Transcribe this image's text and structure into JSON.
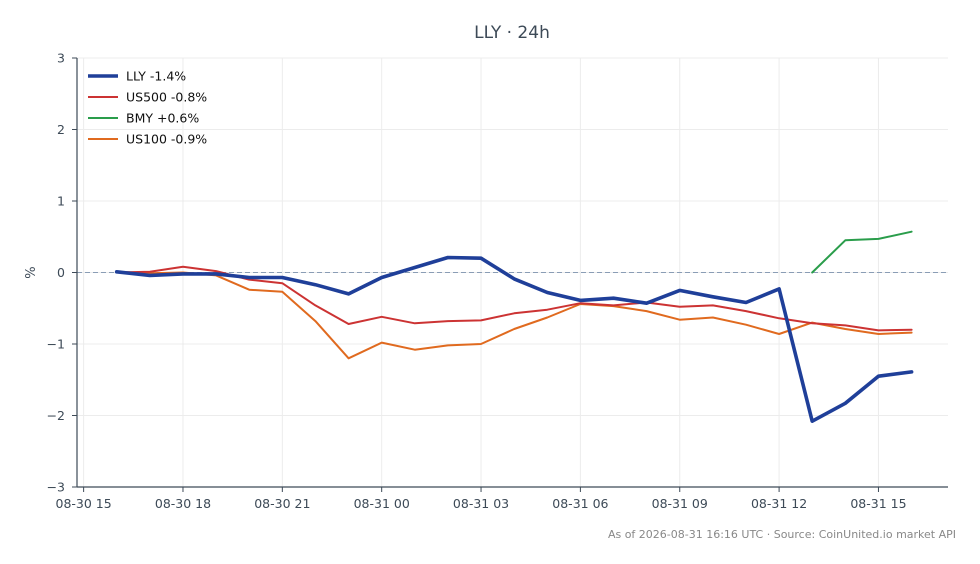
{
  "chart_data": {
    "type": "line",
    "title": "LLY · 24h",
    "xlabel": "",
    "ylabel": "%",
    "ylim": [
      -3,
      3
    ],
    "yticks": [
      -3,
      -2,
      -1,
      0,
      1,
      2,
      3
    ],
    "ytick_labels": [
      "−3",
      "−2",
      "−1",
      "0",
      "1",
      "2",
      "3"
    ],
    "xlim": [
      -0.2,
      26.1
    ],
    "xticks": [
      0,
      3,
      6,
      9,
      12,
      15,
      18,
      21,
      24
    ],
    "xtick_labels": [
      "08-30 15",
      "08-30 18",
      "08-30 21",
      "08-31 00",
      "08-31 03",
      "08-31 06",
      "08-31 09",
      "08-31 12",
      "08-31 15"
    ],
    "grid": true,
    "zero_line": true,
    "legend_position": "top-left",
    "series": [
      {
        "name": "LLY -1.4%",
        "color": "#1f3f99",
        "x": [
          1,
          2,
          3,
          4,
          5,
          6,
          7,
          8,
          9,
          10,
          11,
          12,
          13,
          14,
          15,
          16,
          17,
          18,
          19,
          20,
          21,
          22,
          23,
          24,
          25
        ],
        "values": [
          0.01,
          -0.04,
          -0.02,
          -0.02,
          -0.07,
          -0.07,
          -0.17,
          -0.3,
          -0.07,
          0.07,
          0.21,
          0.2,
          -0.09,
          -0.28,
          -0.39,
          -0.36,
          -0.43,
          -0.25,
          -0.34,
          -0.42,
          -0.23,
          -2.08,
          -1.83,
          -1.45,
          -1.39
        ]
      },
      {
        "name": "US500 -0.8%",
        "color": "#cc3333",
        "x": [
          1,
          2,
          3,
          4,
          5,
          6,
          7,
          8,
          9,
          10,
          11,
          12,
          13,
          14,
          15,
          16,
          17,
          18,
          19,
          20,
          21,
          22,
          23,
          24,
          25
        ],
        "values": [
          0.0,
          0.01,
          0.08,
          0.02,
          -0.1,
          -0.15,
          -0.46,
          -0.72,
          -0.62,
          -0.71,
          -0.68,
          -0.67,
          -0.57,
          -0.52,
          -0.43,
          -0.46,
          -0.42,
          -0.48,
          -0.46,
          -0.54,
          -0.64,
          -0.71,
          -0.74,
          -0.81,
          -0.8
        ]
      },
      {
        "name": "BMY +0.6%",
        "color": "#2a9d4b",
        "x": [
          22,
          23,
          24,
          25
        ],
        "values": [
          0.0,
          0.45,
          0.47,
          0.57
        ]
      },
      {
        "name": "US100 -0.9%",
        "color": "#e06a1f",
        "x": [
          1,
          2,
          3,
          4,
          5,
          6,
          7,
          8,
          9,
          10,
          11,
          12,
          13,
          14,
          15,
          16,
          17,
          18,
          19,
          20,
          21,
          22,
          23,
          24,
          25
        ],
        "values": [
          0.01,
          -0.01,
          0.0,
          -0.04,
          -0.24,
          -0.27,
          -0.68,
          -1.2,
          -0.98,
          -1.08,
          -1.02,
          -1.0,
          -0.79,
          -0.63,
          -0.44,
          -0.47,
          -0.54,
          -0.66,
          -0.63,
          -0.73,
          -0.86,
          -0.7,
          -0.79,
          -0.86,
          -0.84
        ]
      }
    ]
  },
  "footer": "As of 2026-08-31 16:16 UTC · Source: CoinUnited.io market API"
}
